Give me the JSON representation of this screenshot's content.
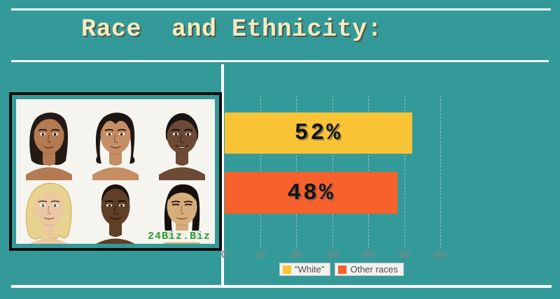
{
  "canvas": {
    "background": "#349a99",
    "rule_color": "#fbfdfd"
  },
  "title": {
    "text": "Race  and Ethnicity:",
    "color": "#f1ecc3"
  },
  "image_panel": {
    "watermark": "24Biz.Biz"
  },
  "portraits": [
    {
      "name": "latina-woman",
      "skin": "#b47a52",
      "hair": "#241b15"
    },
    {
      "name": "native-american-woman",
      "skin": "#c68e64",
      "hair": "#1d1713"
    },
    {
      "name": "african-woman-smiling",
      "skin": "#6d4a35",
      "hair": "#1a1411"
    },
    {
      "name": "blonde-european-woman",
      "skin": "#ecc8a2",
      "hair": "#e7d28e"
    },
    {
      "name": "african-woman-buzz-cut",
      "skin": "#5f4026",
      "hair": "#1c130d"
    },
    {
      "name": "east-asian-woman",
      "skin": "#d7ad7c",
      "hair": "#15100c"
    }
  ],
  "chart_data": {
    "type": "bar",
    "orientation": "horizontal",
    "title": "Race and Ethnicity",
    "categories": [
      "\"White\"",
      "Other races"
    ],
    "values": [
      52,
      48
    ],
    "value_labels": [
      "52%",
      "48%"
    ],
    "colors": [
      "#f8c334",
      "#f6612c"
    ],
    "xticks": [
      0,
      10,
      20,
      30,
      40,
      50,
      60
    ],
    "xlim": [
      0,
      70
    ],
    "grid": true,
    "legend_position": "bottom-center",
    "tick_color": "#6f8a89"
  },
  "legend": {
    "items": [
      {
        "label": "\"White\"",
        "color": "#f8c334"
      },
      {
        "label": "Other races",
        "color": "#f6612c"
      }
    ]
  }
}
